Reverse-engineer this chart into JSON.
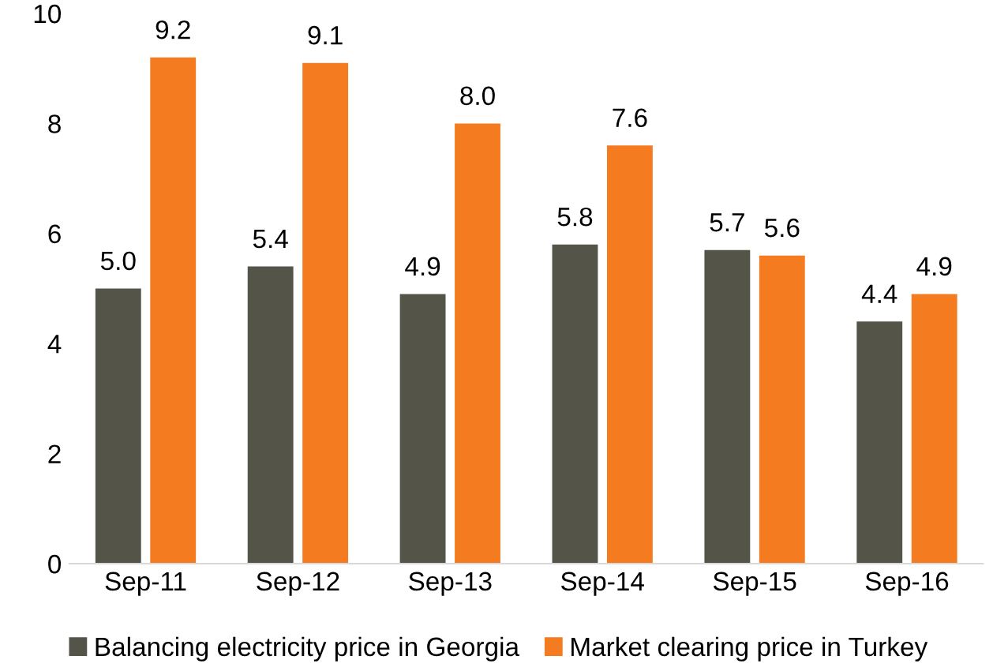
{
  "chart_data": {
    "type": "bar",
    "categories": [
      "Sep-11",
      "Sep-12",
      "Sep-13",
      "Sep-14",
      "Sep-15",
      "Sep-16"
    ],
    "series": [
      {
        "name": "Balancing electricity price in Georgia",
        "color": "#545449",
        "values": [
          5.0,
          5.4,
          4.9,
          5.8,
          5.7,
          4.4
        ],
        "value_labels": [
          "5.0",
          "5.4",
          "4.9",
          "5.8",
          "5.7",
          "4.4"
        ]
      },
      {
        "name": "Market clearing price in Turkey",
        "color": "#f47b20",
        "values": [
          9.2,
          9.1,
          8.0,
          7.6,
          5.6,
          4.9
        ],
        "value_labels": [
          "9.2",
          "9.1",
          "8.0",
          "7.6",
          "5.6",
          "4.9"
        ]
      }
    ],
    "ylim": [
      0,
      10
    ],
    "yticks": [
      0,
      2,
      4,
      6,
      8,
      10
    ],
    "grid": false,
    "legend": "bottom"
  }
}
